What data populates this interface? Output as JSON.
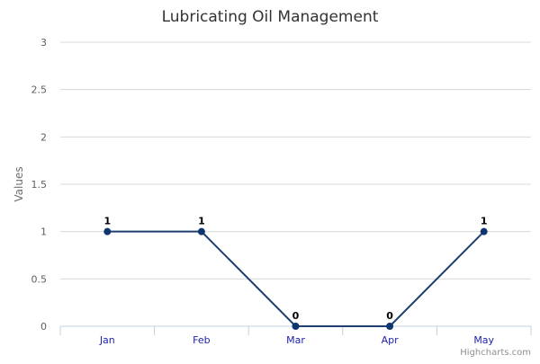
{
  "chart_data": {
    "type": "line",
    "title": "Lubricating Oil Management",
    "xlabel": "",
    "ylabel": "Values",
    "categories": [
      "Jan",
      "Feb",
      "Mar",
      "Apr",
      "May"
    ],
    "series": [
      {
        "values": [
          1,
          1,
          0,
          0,
          1
        ]
      }
    ],
    "data_labels": [
      "1",
      "1",
      "0",
      "0",
      "1"
    ],
    "yticks": [
      "0",
      "0.5",
      "1",
      "1.5",
      "2",
      "2.5",
      "3"
    ],
    "ylim": [
      0,
      3
    ],
    "grid": true,
    "legend": "none",
    "colors": {
      "line": "#1f3f6e",
      "marker": "#0d3570",
      "grid": "#d8d8d8",
      "axis": "#c0d0e0",
      "xtick_text": "#1e22b0"
    }
  },
  "credits": "Highcharts.com"
}
